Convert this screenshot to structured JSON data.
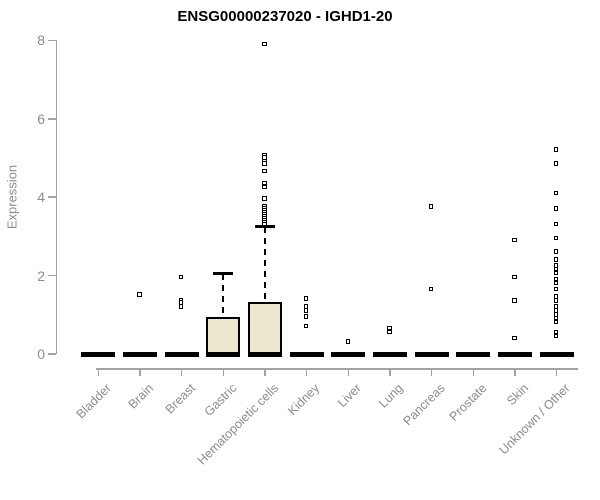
{
  "chart_data": {
    "type": "boxplot",
    "title": "ENSG00000237020 - IGHD1-20",
    "ylabel": "Expression",
    "xlabel": "",
    "ylim": [
      0,
      8
    ],
    "yticks": [
      0,
      2,
      4,
      6,
      8
    ],
    "grid": false,
    "legend": false,
    "colors": {
      "box_fill": "#EDE8CD",
      "box_border": "#000000",
      "median": "#000000",
      "outlier": "#000000",
      "axis": "#A3A3A3",
      "tick_label": "#8C8C8C",
      "title": "#000000"
    },
    "categories": [
      "Bladder",
      "Brain",
      "Breast",
      "Gastric",
      "Hematopoietic cells",
      "Kidney",
      "Liver",
      "Lung",
      "Pancreas",
      "Prostate",
      "Skin",
      "Unknown / Other"
    ],
    "series": [
      {
        "category": "Bladder",
        "q1": 0,
        "median": 0,
        "q3": 0,
        "whisker_low": 0,
        "whisker_high": 0,
        "outliers": []
      },
      {
        "category": "Brain",
        "q1": 0,
        "median": 0,
        "q3": 0,
        "whisker_low": 0,
        "whisker_high": 0,
        "outliers": [
          1.5
        ]
      },
      {
        "category": "Breast",
        "q1": 0,
        "median": 0,
        "q3": 0,
        "whisker_low": 0,
        "whisker_high": 0,
        "outliers": [
          1.95,
          1.35,
          1.3,
          1.2
        ]
      },
      {
        "category": "Gastric",
        "q1": 0,
        "median": 0,
        "q3": 0.95,
        "whisker_low": 0,
        "whisker_high": 2.05,
        "outliers": []
      },
      {
        "category": "Hematopoietic cells",
        "q1": 0,
        "median": 0,
        "q3": 1.33,
        "whisker_low": 0,
        "whisker_high": 3.25,
        "outliers": [
          7.9,
          5.05,
          5.0,
          4.9,
          4.85,
          4.65,
          4.35,
          4.25,
          3.95,
          3.75,
          3.7,
          3.65,
          3.6,
          3.55,
          3.5,
          3.45,
          3.4,
          3.35,
          3.3
        ]
      },
      {
        "category": "Kidney",
        "q1": 0,
        "median": 0,
        "q3": 0,
        "whisker_low": 0,
        "whisker_high": 0,
        "outliers": [
          1.4,
          1.2,
          1.1,
          0.95,
          0.7
        ]
      },
      {
        "category": "Liver",
        "q1": 0,
        "median": 0,
        "q3": 0,
        "whisker_low": 0,
        "whisker_high": 0,
        "outliers": [
          0.3
        ]
      },
      {
        "category": "Lung",
        "q1": 0,
        "median": 0,
        "q3": 0,
        "whisker_low": 0,
        "whisker_high": 0,
        "outliers": [
          0.65,
          0.55
        ]
      },
      {
        "category": "Pancreas",
        "q1": 0,
        "median": 0,
        "q3": 0,
        "whisker_low": 0,
        "whisker_high": 0,
        "outliers": [
          3.75,
          1.65
        ]
      },
      {
        "category": "Prostate",
        "q1": 0,
        "median": 0,
        "q3": 0,
        "whisker_low": 0,
        "whisker_high": 0,
        "outliers": []
      },
      {
        "category": "Skin",
        "q1": 0,
        "median": 0,
        "q3": 0,
        "whisker_low": 0,
        "whisker_high": 0,
        "outliers": [
          2.9,
          1.95,
          1.35,
          0.4
        ]
      },
      {
        "category": "Unknown / Other",
        "q1": 0,
        "median": 0,
        "q3": 0,
        "whisker_low": 0,
        "whisker_high": 0,
        "outliers": [
          5.2,
          4.85,
          4.1,
          3.7,
          3.3,
          2.95,
          2.6,
          2.4,
          2.25,
          2.15,
          2.05,
          1.9,
          1.8,
          1.65,
          1.45,
          1.35,
          1.2,
          1.1,
          1.0,
          0.9,
          0.8,
          0.55,
          0.45
        ]
      }
    ]
  }
}
